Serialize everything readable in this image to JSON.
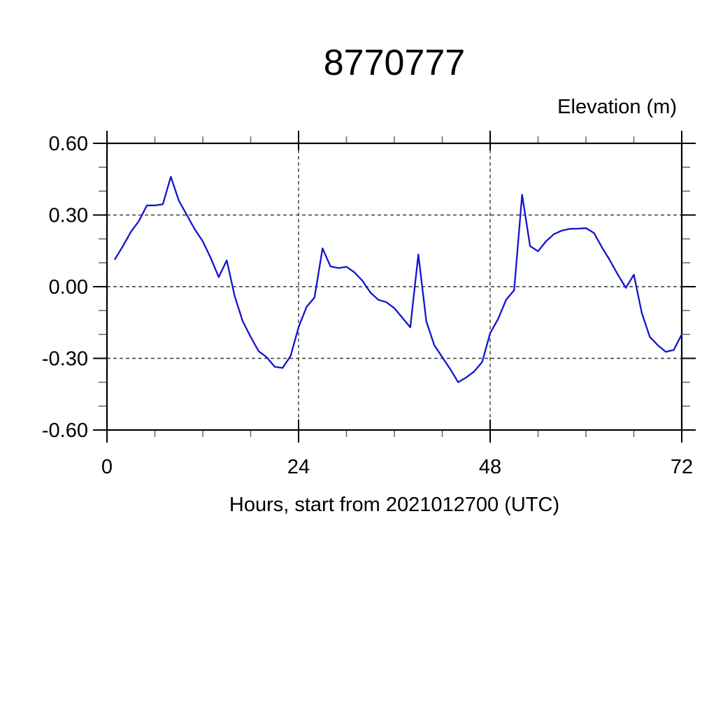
{
  "figure": {
    "background": "#ffffff",
    "frame_color": "#000000",
    "grid_color": "#3a3a3a",
    "minor_tick_color": "#666666"
  },
  "chart_data": {
    "type": "line",
    "title": "8770777",
    "ylabel": "Elevation (m)",
    "xlabel": "Hours, start from 2021012700 (UTC)",
    "xlim": [
      0,
      72
    ],
    "ylim": [
      -0.6,
      0.6
    ],
    "x_major_ticks": [
      0,
      24,
      48,
      72
    ],
    "x_tick_labels": [
      "0",
      "24",
      "48",
      "72"
    ],
    "x_minor_step": 6,
    "y_major_ticks": [
      0.6,
      0.3,
      0.0,
      -0.3,
      -0.6
    ],
    "y_tick_labels": [
      "0.60",
      "0.30",
      "0.00",
      "-0.30",
      "-0.60"
    ],
    "y_minor_step": 0.1,
    "grid": true,
    "legend_position": "none",
    "line_color": "#1414cd",
    "series": [
      {
        "name": "elevation",
        "x": [
          1,
          2,
          3,
          4,
          5,
          6,
          7,
          8,
          9,
          10,
          11,
          12,
          13,
          14,
          15,
          16,
          17,
          18,
          19,
          20,
          21,
          22,
          23,
          24,
          25,
          26,
          27,
          28,
          29,
          30,
          31,
          32,
          33,
          34,
          35,
          36,
          37,
          38,
          39,
          40,
          41,
          42,
          43,
          44,
          45,
          46,
          47,
          48,
          49,
          50,
          51,
          52,
          53,
          54,
          55,
          56,
          57,
          58,
          59,
          60,
          61,
          62,
          63,
          64,
          65,
          66,
          67,
          68,
          69,
          70,
          71,
          72
        ],
        "values": [
          0.115,
          0.17,
          0.23,
          0.275,
          0.34,
          0.34,
          0.345,
          0.46,
          0.36,
          0.3,
          0.24,
          0.19,
          0.12,
          0.04,
          0.11,
          -0.04,
          -0.145,
          -0.21,
          -0.27,
          -0.295,
          -0.335,
          -0.34,
          -0.29,
          -0.17,
          -0.085,
          -0.045,
          0.16,
          0.085,
          0.078,
          0.083,
          0.06,
          0.025,
          -0.025,
          -0.055,
          -0.065,
          -0.09,
          -0.13,
          -0.17,
          0.135,
          -0.145,
          -0.245,
          -0.295,
          -0.345,
          -0.4,
          -0.38,
          -0.355,
          -0.315,
          -0.195,
          -0.135,
          -0.055,
          -0.015,
          0.385,
          0.17,
          0.148,
          0.19,
          0.22,
          0.235,
          0.242,
          0.243,
          0.245,
          0.225,
          0.165,
          0.11,
          0.05,
          -0.005,
          0.05,
          -0.11,
          -0.21,
          -0.245,
          -0.273,
          -0.265,
          -0.2
        ]
      }
    ]
  }
}
